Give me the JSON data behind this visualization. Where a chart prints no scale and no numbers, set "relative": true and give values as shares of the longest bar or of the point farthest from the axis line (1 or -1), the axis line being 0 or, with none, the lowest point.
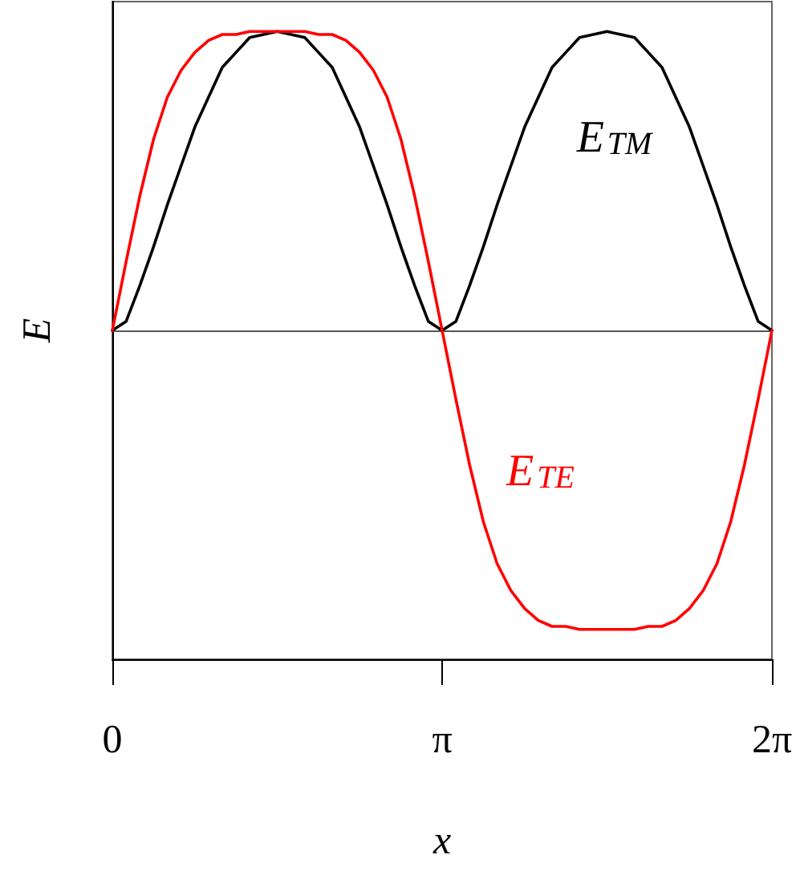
{
  "chart_data": {
    "type": "line",
    "xlabel": "x",
    "ylabel": "E",
    "relative": true,
    "x": [
      0,
      0.1309,
      0.2618,
      0.3927,
      0.5236,
      0.6545,
      0.7854,
      0.9163,
      1.0472,
      1.1781,
      1.309,
      1.4399,
      1.5708,
      1.7017,
      1.8326,
      1.9635,
      2.0944,
      2.2253,
      2.3562,
      2.4871,
      2.618,
      2.7489,
      2.8798,
      3.0107,
      3.1416,
      3.2725,
      3.4034,
      3.5343,
      3.6652,
      3.7961,
      3.927,
      4.0579,
      4.1888,
      4.3197,
      4.4506,
      4.5815,
      4.7124,
      4.8433,
      4.9742,
      5.1051,
      5.236,
      5.3669,
      5.4978,
      5.6287,
      5.7596,
      5.8905,
      6.0214,
      6.1523,
      6.2832
    ],
    "xlim": [
      0,
      6.2832
    ],
    "xticks": [
      0,
      {
        "value": 3.1416,
        "label": "π"
      },
      {
        "value": 6.2832,
        "label": "2π"
      }
    ],
    "series": [
      {
        "name": "E$_{TM}$",
        "color": "#000000",
        "values": [
          0,
          0.03,
          0.15,
          0.28,
          0.42,
          0.55,
          0.68,
          0.78,
          0.88,
          0.93,
          0.98,
          0.99,
          1,
          0.99,
          0.98,
          0.93,
          0.88,
          0.78,
          0.68,
          0.55,
          0.42,
          0.28,
          0.15,
          0.03,
          0,
          0.03,
          0.15,
          0.28,
          0.42,
          0.55,
          0.68,
          0.78,
          0.88,
          0.93,
          0.98,
          0.99,
          1,
          0.99,
          0.98,
          0.93,
          0.88,
          0.78,
          0.68,
          0.55,
          0.42,
          0.28,
          0.15,
          0.03,
          0
        ]
      },
      {
        "name": "E$_{TE}$",
        "color": "#ff0000",
        "values": [
          0,
          0.23,
          0.45,
          0.64,
          0.78,
          0.87,
          0.93,
          0.97,
          0.99,
          0.99,
          1,
          1,
          1,
          1,
          1,
          0.99,
          0.99,
          0.97,
          0.93,
          0.87,
          0.78,
          0.64,
          0.45,
          0.23,
          0,
          -0.23,
          -0.45,
          -0.64,
          -0.78,
          -0.87,
          -0.93,
          -0.97,
          -0.99,
          -0.99,
          -1,
          -1,
          -1,
          -1,
          -1,
          -0.99,
          -0.99,
          -0.97,
          -0.93,
          -0.87,
          -0.78,
          -0.64,
          -0.45,
          -0.23,
          0
        ]
      }
    ]
  }
}
